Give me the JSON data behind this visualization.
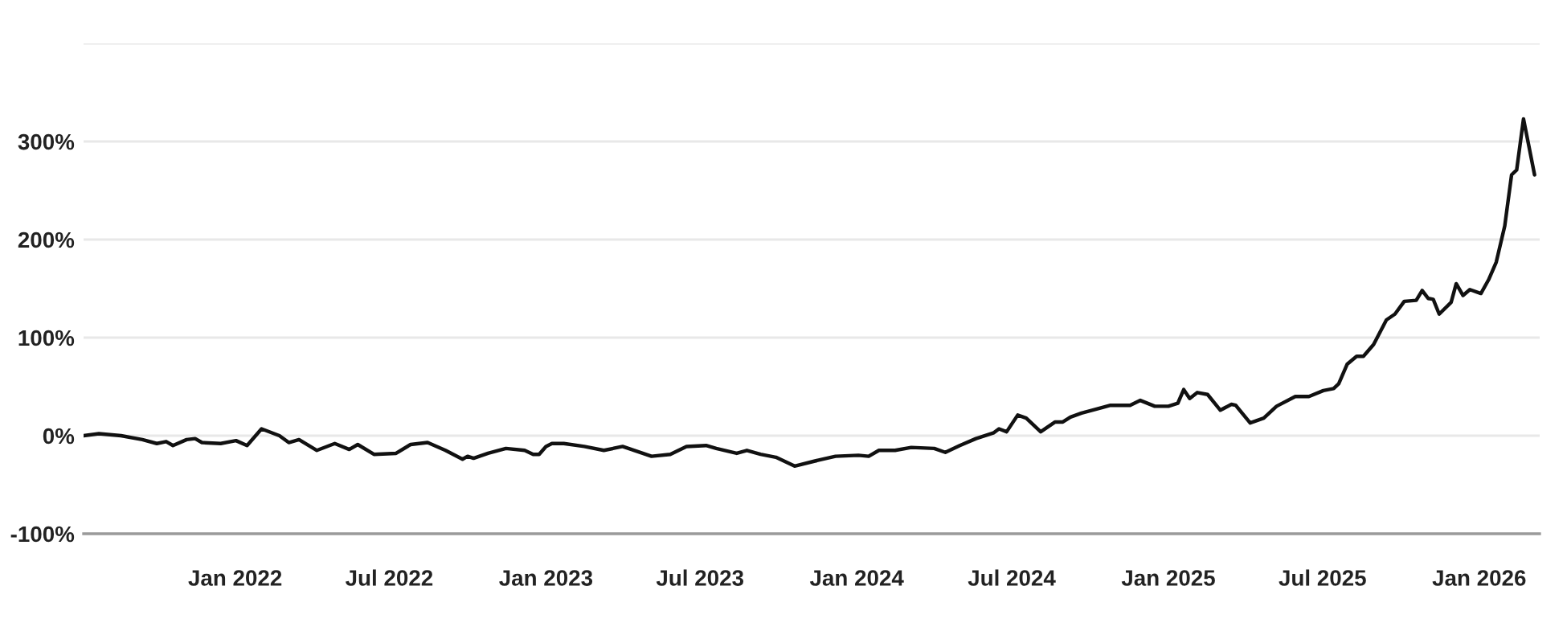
{
  "chart_data": {
    "type": "line",
    "x": [
      "2021-07-07",
      "2021-07-25",
      "2021-08-20",
      "2021-09-14",
      "2021-10-01",
      "2021-10-12",
      "2021-10-20",
      "2021-11-05",
      "2021-11-15",
      "2021-11-23",
      "2021-12-15",
      "2022-01-02",
      "2022-01-15",
      "2022-02-01",
      "2022-02-22",
      "2022-03-05",
      "2022-03-17",
      "2022-04-07",
      "2022-04-28",
      "2022-05-15",
      "2022-05-25",
      "2022-06-13",
      "2022-07-09",
      "2022-07-26",
      "2022-08-15",
      "2022-09-05",
      "2022-09-25",
      "2022-10-01",
      "2022-10-08",
      "2022-10-25",
      "2022-11-15",
      "2022-12-07",
      "2022-12-17",
      "2022-12-24",
      "2023-01-01",
      "2023-01-08",
      "2023-01-22",
      "2023-02-15",
      "2023-03-10",
      "2023-04-01",
      "2023-05-05",
      "2023-05-27",
      "2023-06-15",
      "2023-07-08",
      "2023-07-20",
      "2023-08-13",
      "2023-08-25",
      "2023-09-10",
      "2023-09-28",
      "2023-10-20",
      "2023-11-12",
      "2023-12-07",
      "2024-01-03",
      "2024-01-15",
      "2024-01-27",
      "2024-02-15",
      "2024-03-05",
      "2024-04-01",
      "2024-04-14",
      "2024-05-01",
      "2024-05-20",
      "2024-06-10",
      "2024-06-16",
      "2024-06-25",
      "2024-07-08",
      "2024-07-18",
      "2024-08-04",
      "2024-08-21",
      "2024-08-30",
      "2024-09-08",
      "2024-09-21",
      "2024-10-25",
      "2024-11-17",
      "2024-11-29",
      "2024-12-16",
      "2025-01-01",
      "2025-01-12",
      "2025-01-19",
      "2025-01-26",
      "2025-02-04",
      "2025-02-16",
      "2025-03-03",
      "2025-03-16",
      "2025-03-21",
      "2025-04-07",
      "2025-04-23",
      "2025-05-08",
      "2025-05-30",
      "2025-06-15",
      "2025-07-02",
      "2025-07-14",
      "2025-07-20",
      "2025-07-30",
      "2025-08-10",
      "2025-08-18",
      "2025-08-30",
      "2025-09-14",
      "2025-09-24",
      "2025-10-05",
      "2025-10-19",
      "2025-10-26",
      "2025-11-02",
      "2025-11-08",
      "2025-11-15",
      "2025-11-29",
      "2025-12-05",
      "2025-12-13",
      "2025-12-21",
      "2026-01-03",
      "2026-01-12",
      "2026-01-21",
      "2026-01-31",
      "2026-02-08",
      "2026-02-14",
      "2026-02-22",
      "2026-03-07"
    ],
    "series": [
      {
        "color": "#111111",
        "values": [
          0,
          2,
          0,
          -4,
          -8,
          -6,
          -10,
          -4,
          -3,
          -7,
          -8,
          -5,
          -10,
          7,
          0,
          -7,
          -4,
          -15,
          -8,
          -14,
          -9,
          -19,
          -18,
          -9,
          -7,
          -15,
          -24,
          -21,
          -23,
          -18,
          -13,
          -15,
          -19,
          -19,
          -11,
          -8,
          -8,
          -11,
          -15,
          -11,
          -21,
          -19,
          -11,
          -10,
          -13,
          -18,
          -15,
          -19,
          -22,
          -31,
          -26,
          -21,
          -20,
          -21,
          -15,
          -15,
          -12,
          -13,
          -17,
          -10,
          -3,
          3,
          7,
          4,
          21,
          18,
          4,
          14,
          14,
          19,
          23,
          31,
          31,
          36,
          30,
          30,
          33,
          47,
          38,
          44,
          42,
          26,
          32,
          31,
          13,
          18,
          30,
          40,
          40,
          46,
          48,
          53,
          73,
          81,
          81,
          93,
          118,
          124,
          137,
          138,
          148,
          140,
          139,
          124,
          136,
          155,
          143,
          149,
          145,
          159,
          177,
          214,
          266,
          271,
          323,
          266
        ]
      }
    ],
    "xlim": [
      "2021-07-07",
      "2026-03-13"
    ],
    "xticks": [
      {
        "value": "2022-01-01",
        "label": "Jan 2022"
      },
      {
        "value": "2022-07-01",
        "label": "Jul 2022"
      },
      {
        "value": "2023-01-01",
        "label": "Jan 2023"
      },
      {
        "value": "2023-07-01",
        "label": "Jul 2023"
      },
      {
        "value": "2024-01-01",
        "label": "Jan 2024"
      },
      {
        "value": "2024-07-01",
        "label": "Jul 2024"
      },
      {
        "value": "2025-01-01",
        "label": "Jan 2025"
      },
      {
        "value": "2025-07-01",
        "label": "Jul 2025"
      },
      {
        "value": "2026-01-01",
        "label": "Jan 2026"
      }
    ],
    "ylim": [
      -100,
      400
    ],
    "yticks": [
      {
        "value": -100,
        "label": "-100%"
      },
      {
        "value": 0,
        "label": "0%"
      },
      {
        "value": 100,
        "label": "100%"
      },
      {
        "value": 200,
        "label": "200%"
      },
      {
        "value": 300,
        "label": "300%"
      },
      {
        "value": 400,
        "label": null
      }
    ],
    "grid": "y"
  }
}
